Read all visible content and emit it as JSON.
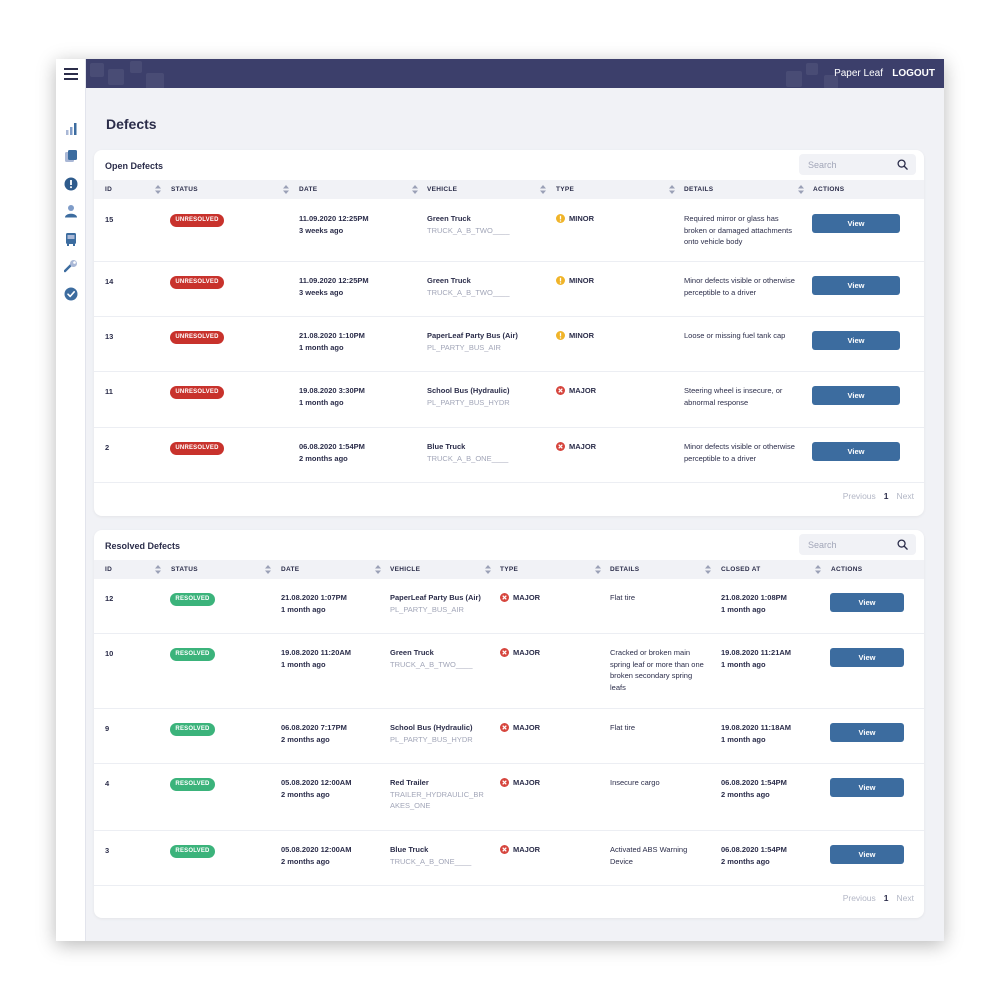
{
  "header": {
    "brand": "Paper Leaf",
    "logout": "LOGOUT"
  },
  "page": {
    "title": "Defects"
  },
  "colors": {
    "accent": "#3c6c9f",
    "topbar": "#3c3f6b",
    "unresolved": "#c8322c",
    "resolved": "#3bb37b",
    "minor": "#f0b429",
    "major": "#d6453d"
  },
  "sidebar": {
    "icons": [
      "menu-icon",
      "bar-chart-icon",
      "documents-icon",
      "alert-icon",
      "user-icon",
      "bus-icon",
      "wrench-icon",
      "check-circle-icon"
    ]
  },
  "open": {
    "title": "Open Defects",
    "search_placeholder": "Search",
    "columns": [
      "ID",
      "STATUS",
      "DATE",
      "VEHICLE",
      "TYPE",
      "DETAILS",
      "ACTIONS"
    ],
    "rows": [
      {
        "id": "15",
        "status": "UNRESOLVED",
        "date": "11.09.2020 12:25PM",
        "ago": "3 weeks ago",
        "vehicle": "Green Truck",
        "code": "TRUCK_A_B_TWO____",
        "type": "MINOR",
        "details": "Required mirror or glass has broken or damaged attachments onto vehicle body",
        "action": "View"
      },
      {
        "id": "14",
        "status": "UNRESOLVED",
        "date": "11.09.2020 12:25PM",
        "ago": "3 weeks ago",
        "vehicle": "Green Truck",
        "code": "TRUCK_A_B_TWO____",
        "type": "MINOR",
        "details": "Minor defects visible or otherwise perceptible to a driver",
        "action": "View"
      },
      {
        "id": "13",
        "status": "UNRESOLVED",
        "date": "21.08.2020 1:10PM",
        "ago": "1 month ago",
        "vehicle": "PaperLeaf Party Bus (Air)",
        "code": "PL_PARTY_BUS_AIR",
        "type": "MINOR",
        "details": "Loose or missing fuel tank cap",
        "action": "View"
      },
      {
        "id": "11",
        "status": "UNRESOLVED",
        "date": "19.08.2020 3:30PM",
        "ago": "1 month ago",
        "vehicle": "School Bus (Hydraulic)",
        "code": "PL_PARTY_BUS_HYDR",
        "type": "MAJOR",
        "details": "Steering wheel is insecure, or abnormal response",
        "action": "View"
      },
      {
        "id": "2",
        "status": "UNRESOLVED",
        "date": "06.08.2020 1:54PM",
        "ago": "2 months ago",
        "vehicle": "Blue Truck",
        "code": "TRUCK_A_B_ONE____",
        "type": "MAJOR",
        "details": "Minor defects visible or otherwise perceptible to a driver",
        "action": "View"
      }
    ],
    "pager": {
      "prev": "Previous",
      "page": "1",
      "next": "Next"
    }
  },
  "resolved": {
    "title": "Resolved Defects",
    "search_placeholder": "Search",
    "columns": [
      "ID",
      "STATUS",
      "DATE",
      "VEHICLE",
      "TYPE",
      "DETAILS",
      "CLOSED AT",
      "ACTIONS"
    ],
    "rows": [
      {
        "id": "12",
        "status": "RESOLVED",
        "date": "21.08.2020 1:07PM",
        "ago": "1 month ago",
        "vehicle": "PaperLeaf Party Bus (Air)",
        "code": "PL_PARTY_BUS_AIR",
        "type": "MAJOR",
        "details": "Flat tire",
        "closed": "21.08.2020 1:08PM",
        "closed_ago": "1 month ago",
        "action": "View"
      },
      {
        "id": "10",
        "status": "RESOLVED",
        "date": "19.08.2020 11:20AM",
        "ago": "1 month ago",
        "vehicle": "Green Truck",
        "code": "TRUCK_A_B_TWO____",
        "type": "MAJOR",
        "details": "Cracked or broken main spring leaf or more than one broken secondary spring leafs",
        "closed": "19.08.2020 11:21AM",
        "closed_ago": "1 month ago",
        "action": "View"
      },
      {
        "id": "9",
        "status": "RESOLVED",
        "date": "06.08.2020 7:17PM",
        "ago": "2 months ago",
        "vehicle": "School Bus (Hydraulic)",
        "code": "PL_PARTY_BUS_HYDR",
        "type": "MAJOR",
        "details": "Flat tire",
        "closed": "19.08.2020 11:18AM",
        "closed_ago": "1 month ago",
        "action": "View"
      },
      {
        "id": "4",
        "status": "RESOLVED",
        "date": "05.08.2020 12:00AM",
        "ago": "2 months ago",
        "vehicle": "Red Trailer",
        "code": "TRAILER_HYDRAULIC_BRAKES_ONE",
        "type": "MAJOR",
        "details": "Insecure cargo",
        "closed": "06.08.2020 1:54PM",
        "closed_ago": "2 months ago",
        "action": "View"
      },
      {
        "id": "3",
        "status": "RESOLVED",
        "date": "05.08.2020 12:00AM",
        "ago": "2 months ago",
        "vehicle": "Blue Truck",
        "code": "TRUCK_A_B_ONE____",
        "type": "MAJOR",
        "details": "Activated ABS Warning Device",
        "closed": "06.08.2020 1:54PM",
        "closed_ago": "2 months ago",
        "action": "View"
      }
    ],
    "pager": {
      "prev": "Previous",
      "page": "1",
      "next": "Next"
    }
  }
}
